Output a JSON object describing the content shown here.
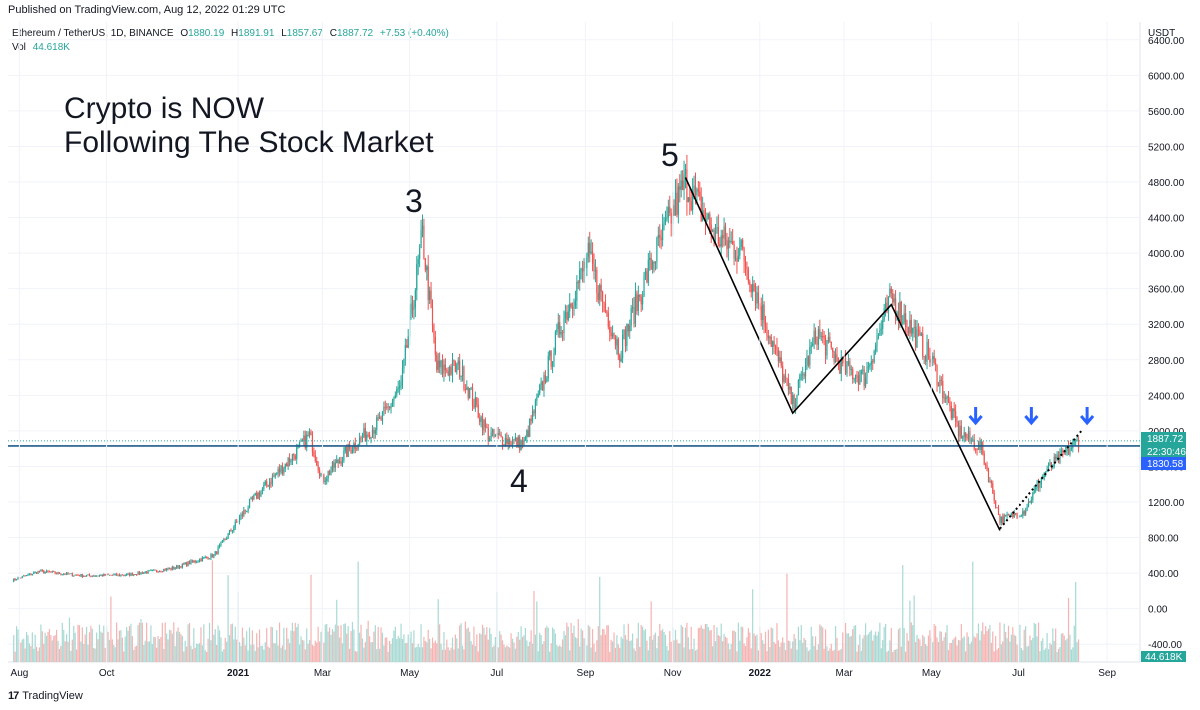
{
  "published": "Published on TradingView.com, Aug 12, 2022 01:29 UTC",
  "footer": {
    "brand": "TradingView",
    "mark": "17"
  },
  "colors": {
    "up": "#26a69a",
    "down": "#ef5350",
    "vol_up": "#a8d9d3",
    "vol_down": "#f5b3b2",
    "line": "#1e5b8c",
    "last_price_bg": "#26a69a",
    "prev_close_bg": "#2962ff",
    "arrow": "#2962ff"
  },
  "header": {
    "symbol_info": "Ethereum / TetherUS, 1D, BINANCE",
    "o_label": "O",
    "o_value": "1880.19",
    "h_label": "H",
    "h_value": "1891.91",
    "l_label": "L",
    "l_value": "1857.67",
    "c_label": "C",
    "c_value": "1887.72",
    "change": "+7.53 (+0.40%)",
    "vol_label": "Vol",
    "vol_value": "44.618K"
  },
  "price_axis": {
    "currency": "USDT",
    "tick_labels": [
      "6400.00",
      "6000.00",
      "5600.00",
      "5200.00",
      "4800.00",
      "4400.00",
      "4000.00",
      "3600.00",
      "3200.00",
      "2800.00",
      "2400.00",
      "2000.00",
      "1600.00",
      "1200.00",
      "800.00",
      "400.00",
      "0.00",
      "-400.00"
    ],
    "last_price": "1887.72",
    "countdown": "22:30:46",
    "prev_price": "1830.58",
    "vol_badge": "44.618K"
  },
  "headline": {
    "line1": "Crypto is NOW",
    "line2": "Following The Stock Market"
  },
  "wave_labels": [
    "3",
    "4",
    "5"
  ],
  "chart_data": {
    "type": "candlestick",
    "title": "Ethereum / TetherUS, 1D, BINANCE",
    "x_tick_labels": [
      "Aug",
      "Oct",
      "2021",
      "Mar",
      "May",
      "Jul",
      "Sep",
      "Nov",
      "2022",
      "Mar",
      "May",
      "Jul",
      "Sep"
    ],
    "x_tick_dates": [
      "2020-08-01",
      "2020-10-01",
      "2021-01-01",
      "2021-03-01",
      "2021-05-01",
      "2021-07-01",
      "2021-09-01",
      "2021-11-01",
      "2022-01-01",
      "2022-03-01",
      "2022-05-01",
      "2022-07-01",
      "2022-09-01"
    ],
    "x_range": [
      "2020-07-24",
      "2022-09-24"
    ],
    "ylim": [
      -600,
      6600
    ],
    "close_path": [
      [
        "2020-07-27",
        320
      ],
      [
        "2020-08-15",
        420
      ],
      [
        "2020-09-15",
        370
      ],
      [
        "2020-10-15",
        380
      ],
      [
        "2020-11-15",
        450
      ],
      [
        "2020-12-15",
        600
      ],
      [
        "2021-01-10",
        1200
      ],
      [
        "2021-02-10",
        1750
      ],
      [
        "2021-02-20",
        1950
      ],
      [
        "2021-03-01",
        1450
      ],
      [
        "2021-03-20",
        1800
      ],
      [
        "2021-04-10",
        2100
      ],
      [
        "2021-04-25",
        2500
      ],
      [
        "2021-05-10",
        4200
      ],
      [
        "2021-05-20",
        2700
      ],
      [
        "2021-06-05",
        2700
      ],
      [
        "2021-06-25",
        1950
      ],
      [
        "2021-07-20",
        1850
      ],
      [
        "2021-08-15",
        3200
      ],
      [
        "2021-09-03",
        3950
      ],
      [
        "2021-09-25",
        2900
      ],
      [
        "2021-10-15",
        3800
      ],
      [
        "2021-11-10",
        4800
      ],
      [
        "2021-12-01",
        4200
      ],
      [
        "2021-12-20",
        4000
      ],
      [
        "2022-01-24",
        2300
      ],
      [
        "2022-02-10",
        3100
      ],
      [
        "2022-03-01",
        2700
      ],
      [
        "2022-03-15",
        2600
      ],
      [
        "2022-04-03",
        3500
      ],
      [
        "2022-05-01",
        2800
      ],
      [
        "2022-05-20",
        2000
      ],
      [
        "2022-06-05",
        1800
      ],
      [
        "2022-06-18",
        1000
      ],
      [
        "2022-07-05",
        1100
      ],
      [
        "2022-07-20",
        1550
      ],
      [
        "2022-08-12",
        1888
      ]
    ],
    "volume_ylim": [
      -600,
      6600
    ],
    "horizontal_line": 1830.58,
    "annotations": {
      "wave_points": [
        {
          "label": "3",
          "date": "2021-05-12",
          "price": 4400
        },
        {
          "label": "4",
          "date": "2021-07-20",
          "price": 1700
        },
        {
          "label": "5",
          "date": "2021-11-10",
          "price": 4800
        }
      ],
      "trend_lines": [
        [
          [
            "2021-11-10",
            4850
          ],
          [
            "2022-01-24",
            2200
          ],
          [
            "2022-04-03",
            3420
          ],
          [
            "2022-06-18",
            880
          ]
        ]
      ],
      "dotted_line": [
        [
          "2022-06-18",
          900
        ],
        [
          "2022-08-14",
          2000
        ]
      ],
      "arrows_dates": [
        "2022-06-01",
        "2022-07-10",
        "2022-08-18"
      ]
    }
  }
}
